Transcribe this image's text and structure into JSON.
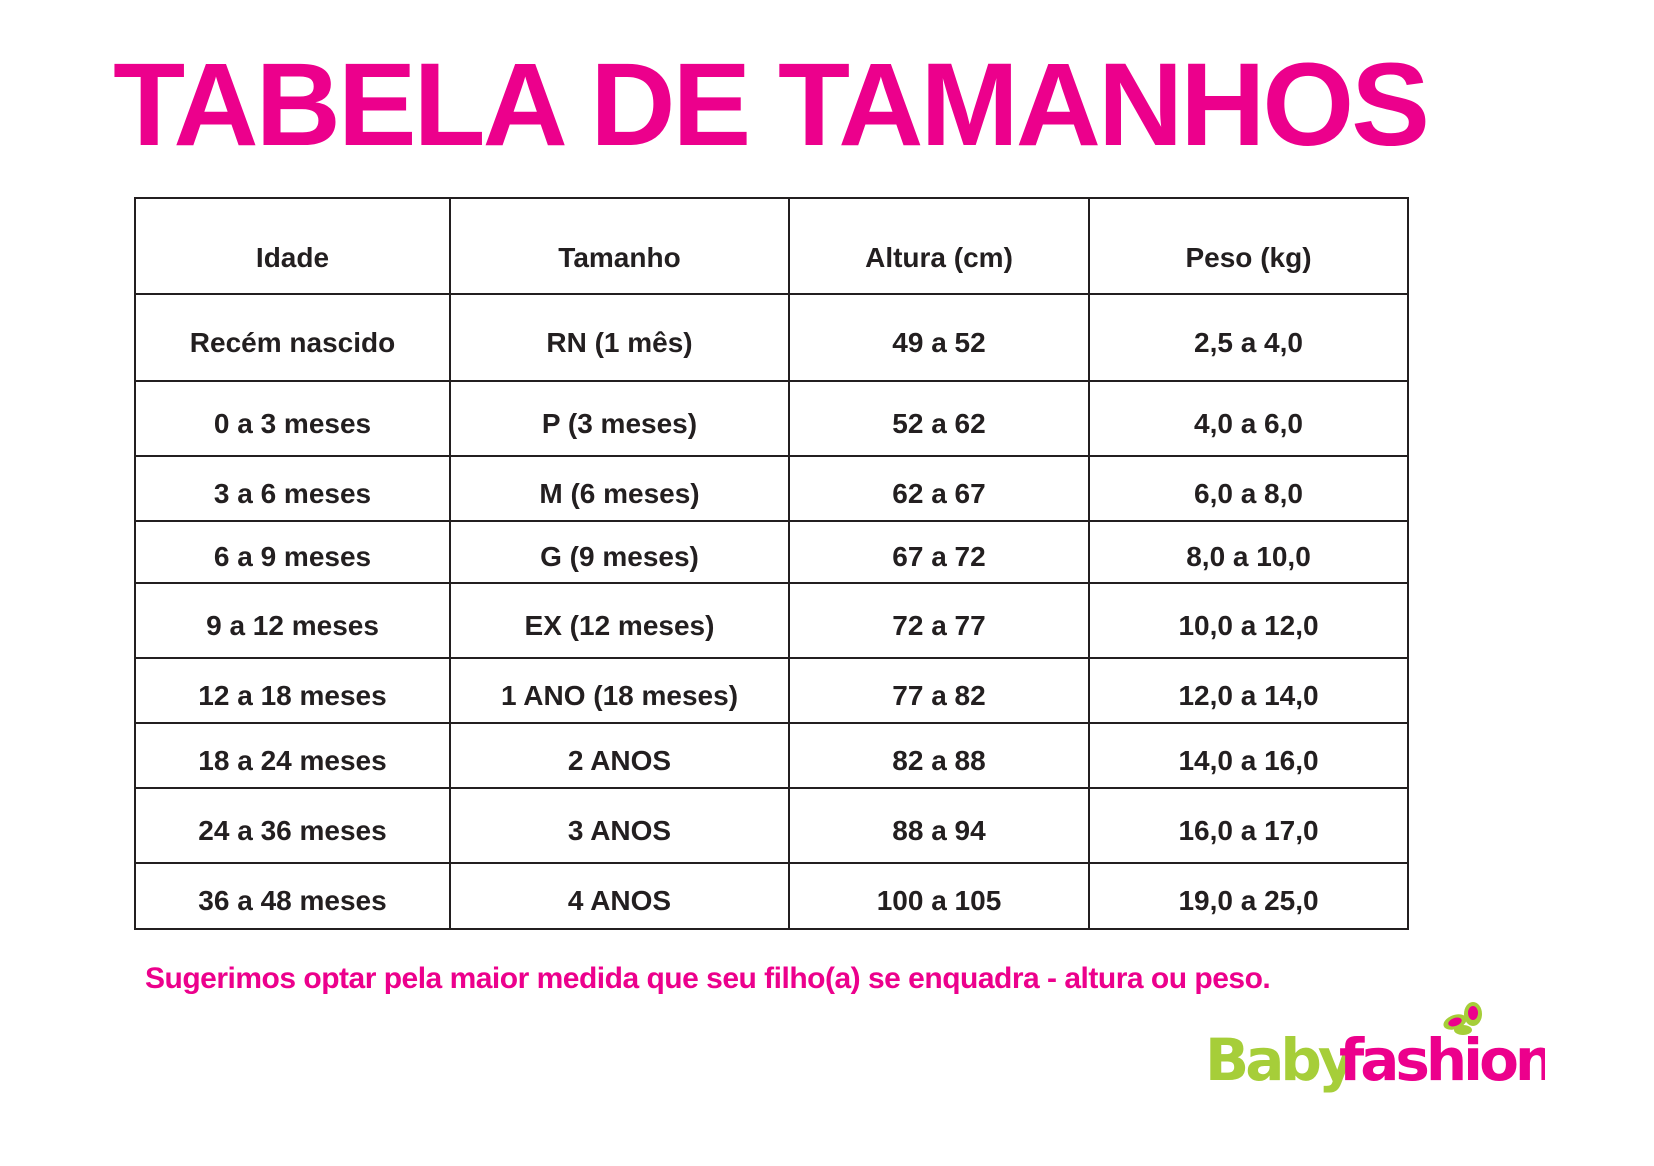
{
  "title": "TABELA DE TAMANHOS",
  "table": {
    "headers": [
      "Idade",
      "Tamanho",
      "Altura (cm)",
      "Peso (kg)"
    ],
    "rows": [
      [
        "Recém nascido",
        "RN (1 mês)",
        "49 a 52",
        "2,5 a 4,0"
      ],
      [
        "0 a 3 meses",
        "P (3 meses)",
        "52 a 62",
        "4,0 a 6,0"
      ],
      [
        "3 a 6 meses",
        "M (6 meses)",
        "62 a 67",
        "6,0 a 8,0"
      ],
      [
        "6 a 9 meses",
        "G (9 meses)",
        "67 a 72",
        "8,0 a 10,0"
      ],
      [
        "9 a 12 meses",
        "EX (12 meses)",
        "72 a 77",
        "10,0 a 12,0"
      ],
      [
        "12 a 18 meses",
        "1 ANO (18 meses)",
        "77 a 82",
        "12,0 a 14,0"
      ],
      [
        "18 a 24 meses",
        "2 ANOS",
        "82 a 88",
        "14,0 a 16,0"
      ],
      [
        "24 a 36 meses",
        "3 ANOS",
        "88 a 94",
        "16,0 a 17,0"
      ],
      [
        "36 a 48 meses",
        "4 ANOS",
        "100 a 105",
        "19,0 a 25,0"
      ]
    ]
  },
  "note": "Sugerimos optar pela maior medida que seu filho(a) se enquadra - altura ou peso.",
  "logo": {
    "part1": "Baby",
    "part2": "fashion",
    "color1": "#A6CE39",
    "color2": "#EC008C"
  },
  "colors": {
    "accent": "#EC008C",
    "text": "#231F20"
  }
}
